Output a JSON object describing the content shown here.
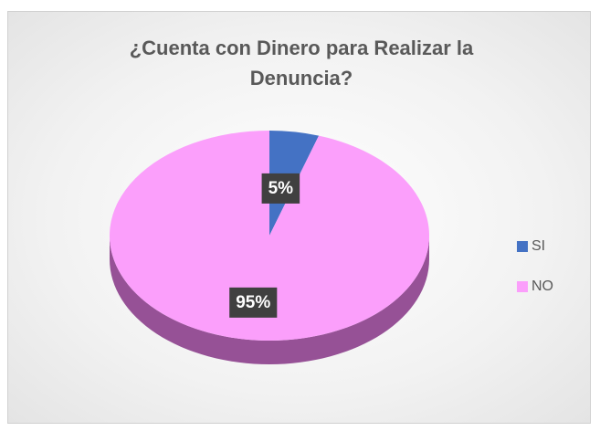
{
  "chart_data": {
    "type": "pie",
    "title": "¿Cuenta con Dinero para Realizar la Denuncia?",
    "categories": [
      "SI",
      "NO"
    ],
    "values": [
      5,
      95
    ],
    "value_labels": [
      "5%",
      "95%"
    ],
    "colors": [
      "#4472c4",
      "#fb9ffb"
    ],
    "legend": "right"
  }
}
